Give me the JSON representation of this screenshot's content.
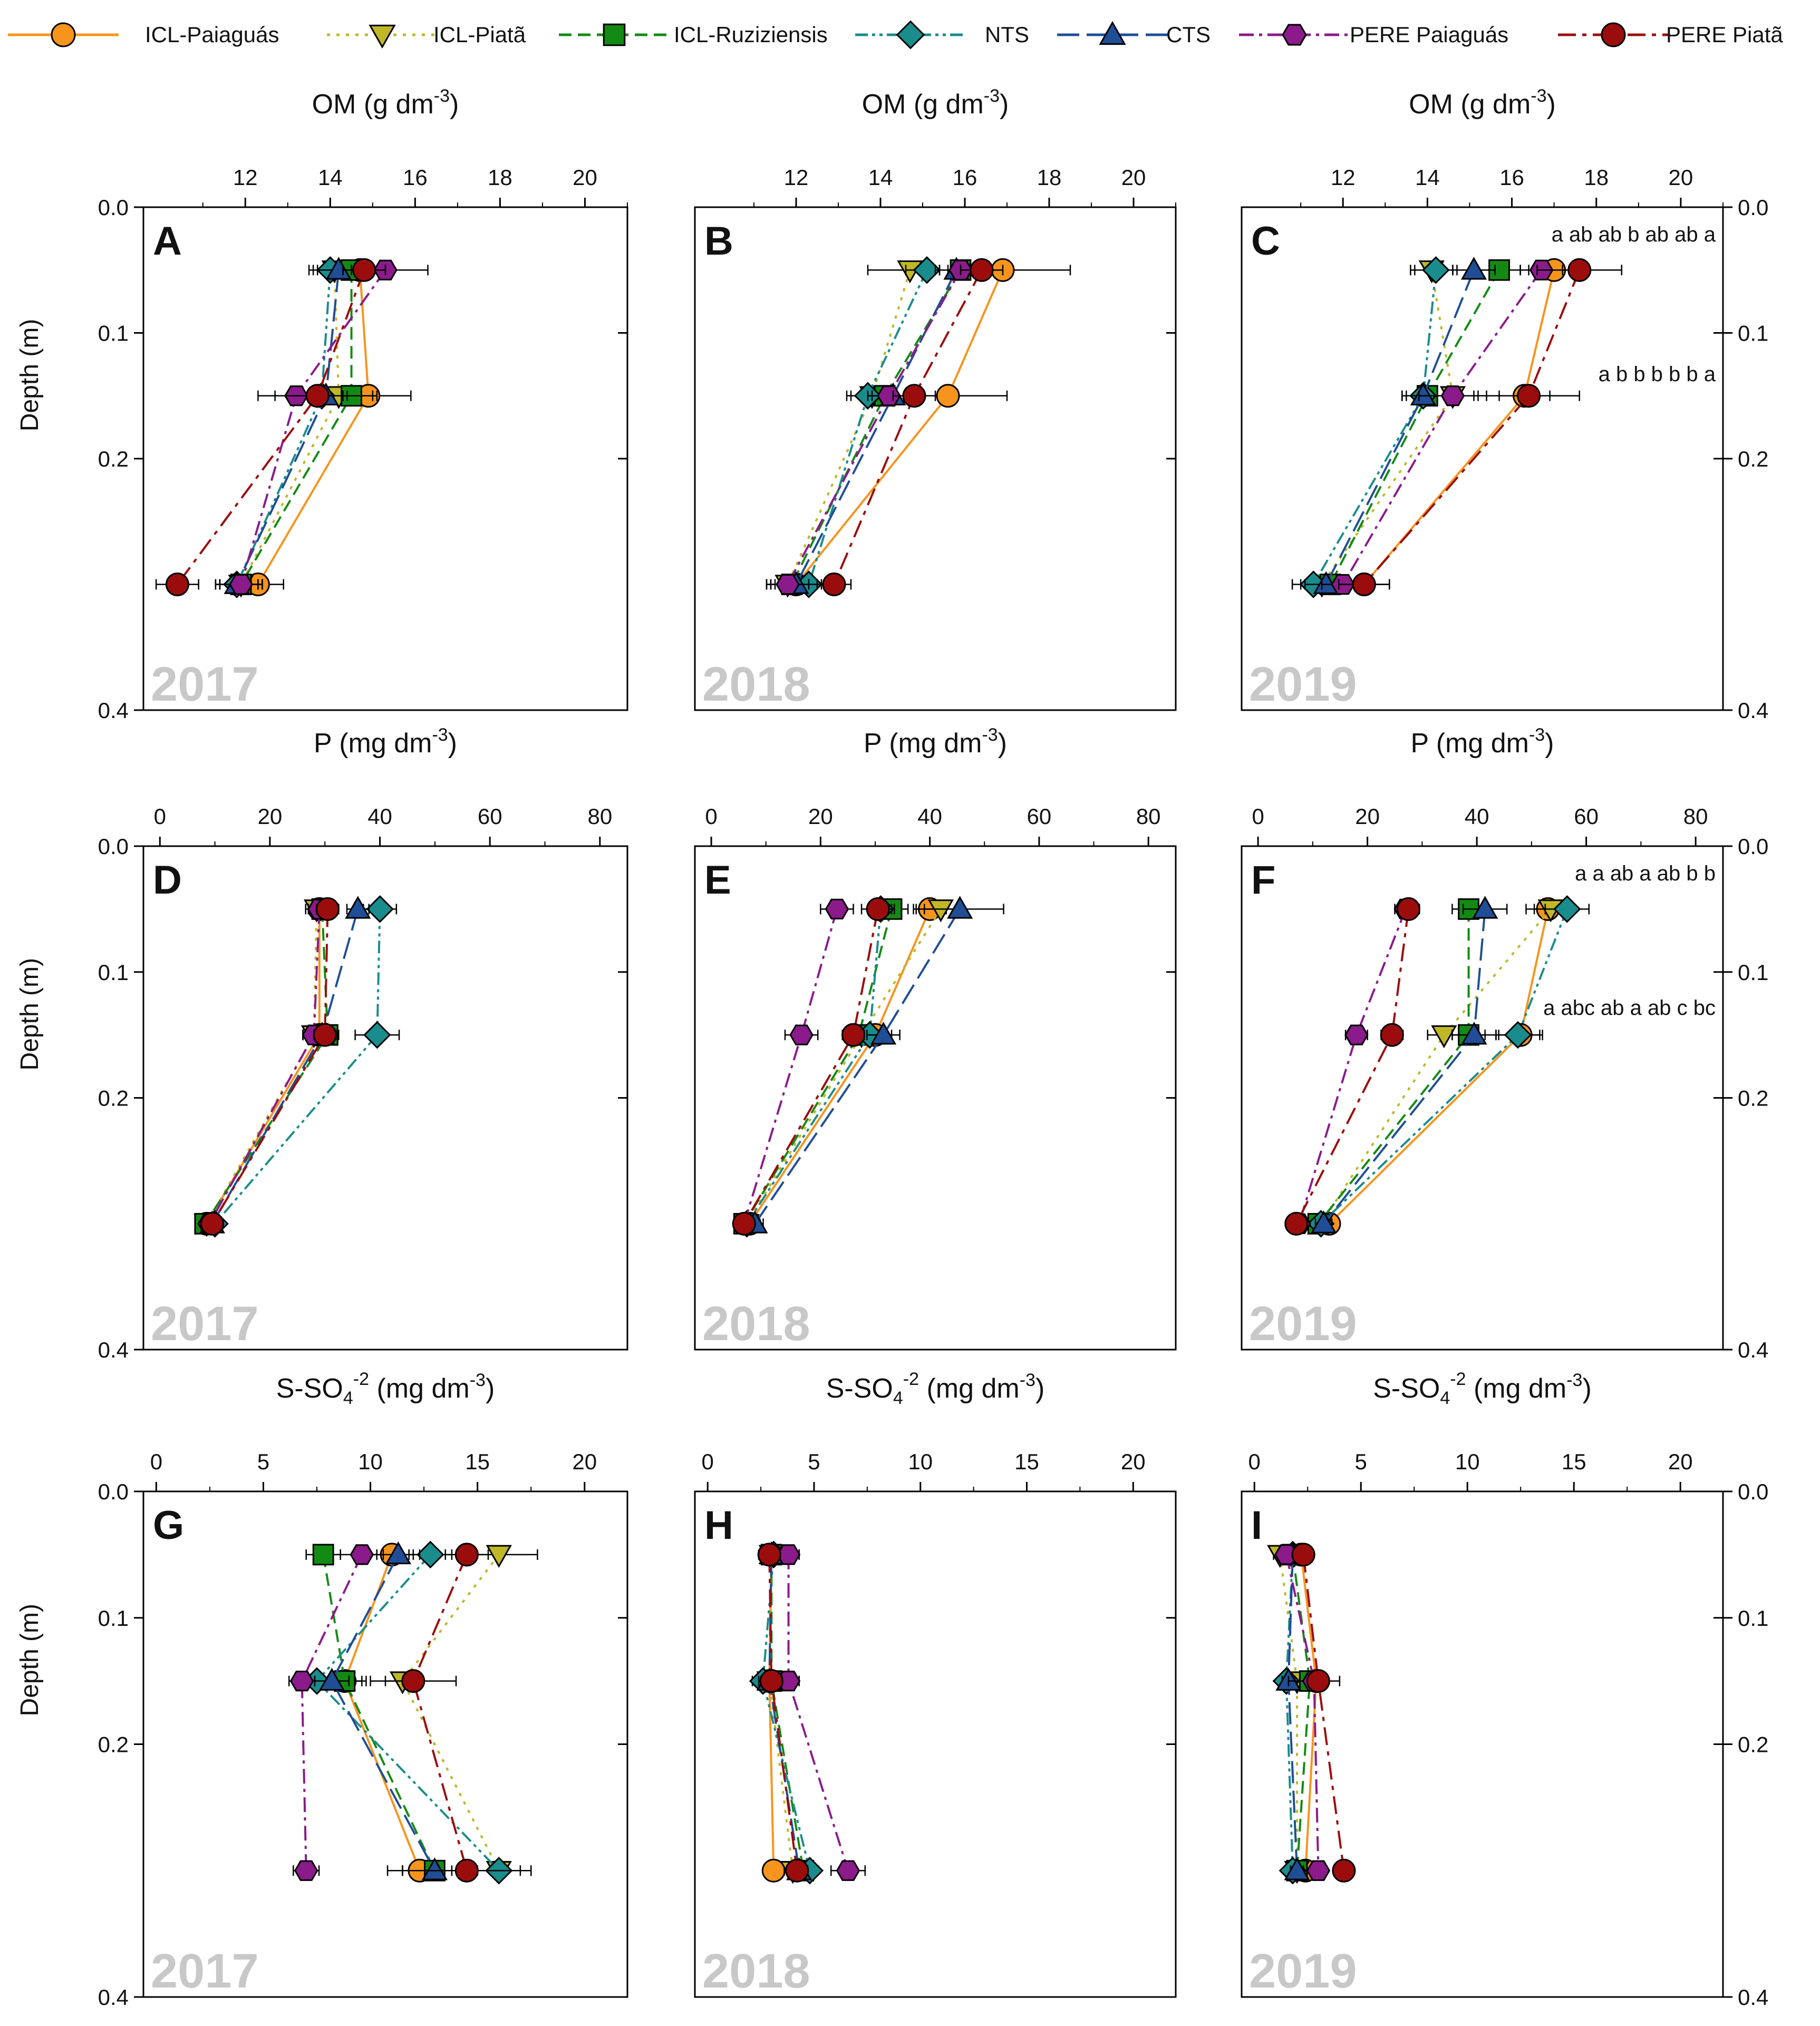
{
  "legend": [
    {
      "name": "ICL-Paiaguás",
      "color": "#F7941D",
      "marker": "circle",
      "dash": "solid"
    },
    {
      "name": "ICL-Piatã",
      "color": "#BFB726",
      "marker": "triangle-down",
      "dash": "dot"
    },
    {
      "name": "ICL-Ruziziensis",
      "color": "#138A13",
      "marker": "square",
      "dash": "dash"
    },
    {
      "name": "NTS",
      "color": "#1A8C8C",
      "marker": "diamond",
      "dash": "dashdotdot"
    },
    {
      "name": "CTS",
      "color": "#1F4E96",
      "marker": "triangle-up",
      "dash": "longdash"
    },
    {
      "name": "PERE Paiaguás",
      "color": "#8B1A8B",
      "marker": "hexagon",
      "dash": "dashdot"
    },
    {
      "name": "PERE Piatã",
      "color": "#9B0D0D",
      "marker": "circle",
      "dash": "longdashdot"
    }
  ],
  "y_axis_label": "Depth (m)",
  "depth_ticks": [
    "0.0",
    "0.1",
    "0.2",
    "0.4"
  ],
  "rows": [
    {
      "xlabel_main": "OM (g dm",
      "xlabel_sup": "-3",
      "xlabel_end": ")"
    },
    {
      "xlabel_main": "P (mg dm",
      "xlabel_sup": "-3",
      "xlabel_end": ")"
    },
    {
      "xlabel_main": "S-SO",
      "xlabel_sub": "4",
      "xlabel_sup": "-2",
      "xlabel_mid": " (mg dm",
      "xlabel_sup2": "-3",
      "xlabel_end": ")"
    }
  ],
  "chart_data": [
    {
      "panel": "A",
      "year": "2017",
      "type": "line",
      "xlim": [
        9.6,
        21
      ],
      "xticks": [
        12,
        14,
        16,
        18,
        20
      ],
      "ylim": [
        0,
        0.4
      ],
      "depths": [
        0.05,
        0.15,
        0.3
      ],
      "series": [
        {
          "name": "ICL-Paiaguás",
          "values": [
            14.7,
            14.9,
            12.3
          ],
          "err": [
            0.6,
            1.0,
            0.6
          ]
        },
        {
          "name": "ICL-Piatã",
          "values": [
            14.1,
            14.2,
            11.9
          ],
          "err": [
            0.5,
            0.5,
            0.5
          ]
        },
        {
          "name": "ICL-Ruziziensis",
          "values": [
            14.5,
            14.5,
            11.9
          ],
          "err": [
            0.5,
            0.5,
            0.5
          ]
        },
        {
          "name": "NTS",
          "values": [
            14.0,
            13.8,
            11.8
          ],
          "err": [
            0.5,
            0.5,
            0.5
          ]
        },
        {
          "name": "CTS",
          "values": [
            14.2,
            13.9,
            11.8
          ],
          "err": [
            0.5,
            0.5,
            0.5
          ]
        },
        {
          "name": "PERE Paiaguás",
          "values": [
            15.3,
            13.2,
            11.9
          ],
          "err": [
            1.0,
            0.5,
            0.5
          ]
        },
        {
          "name": "PERE Piatã",
          "values": [
            14.8,
            13.7,
            10.4
          ],
          "err": [
            0.5,
            1.4,
            0.5
          ]
        }
      ],
      "annotations": []
    },
    {
      "panel": "B",
      "year": "2018",
      "type": "line",
      "xlim": [
        9.6,
        21
      ],
      "xticks": [
        12,
        14,
        16,
        18,
        20
      ],
      "ylim": [
        0,
        0.4
      ],
      "depths": [
        0.05,
        0.15,
        0.3
      ],
      "series": [
        {
          "name": "ICL-Paiaguás",
          "values": [
            16.9,
            15.6,
            12.0
          ],
          "err": [
            1.6,
            1.4,
            0.6
          ]
        },
        {
          "name": "ICL-Piatã",
          "values": [
            14.7,
            13.8,
            11.8
          ],
          "err": [
            1.0,
            0.5,
            0.5
          ]
        },
        {
          "name": "ICL-Ruziziensis",
          "values": [
            15.9,
            14.1,
            11.9
          ],
          "err": [
            0.5,
            0.5,
            0.5
          ]
        },
        {
          "name": "NTS",
          "values": [
            15.1,
            13.7,
            12.3
          ],
          "err": [
            0.5,
            0.5,
            0.5
          ]
        },
        {
          "name": "CTS",
          "values": [
            15.8,
            14.3,
            12.0
          ],
          "err": [
            0.5,
            0.5,
            0.5
          ]
        },
        {
          "name": "PERE Paiaguás",
          "values": [
            15.9,
            14.2,
            11.8
          ],
          "err": [
            0.5,
            0.5,
            0.5
          ]
        },
        {
          "name": "PERE Piatã",
          "values": [
            16.4,
            14.8,
            12.9
          ],
          "err": [
            0.5,
            0.5,
            0.4
          ]
        }
      ],
      "annotations": []
    },
    {
      "panel": "C",
      "year": "2019",
      "type": "line",
      "xlim": [
        9.6,
        21
      ],
      "xticks": [
        12,
        14,
        16,
        18,
        20
      ],
      "ylim": [
        0,
        0.4
      ],
      "depths": [
        0.05,
        0.15,
        0.3
      ],
      "series": [
        {
          "name": "ICL-Paiaguás",
          "values": [
            17.0,
            16.3,
            12.5
          ],
          "err": [
            0.6,
            0.6,
            0.6
          ]
        },
        {
          "name": "ICL-Piatã",
          "values": [
            14.1,
            14.6,
            11.5
          ],
          "err": [
            0.5,
            0.5,
            0.5
          ]
        },
        {
          "name": "ICL-Ruziziensis",
          "values": [
            15.7,
            14.0,
            11.7
          ],
          "err": [
            0.5,
            0.5,
            0.5
          ]
        },
        {
          "name": "NTS",
          "values": [
            14.2,
            13.9,
            11.3
          ],
          "err": [
            0.5,
            0.5,
            0.5
          ]
        },
        {
          "name": "CTS",
          "values": [
            15.1,
            13.9,
            11.6
          ],
          "err": [
            0.5,
            0.5,
            0.5
          ]
        },
        {
          "name": "PERE Paiaguás",
          "values": [
            16.7,
            14.6,
            12.0
          ],
          "err": [
            0.5,
            0.8,
            0.5
          ]
        },
        {
          "name": "PERE Piatã",
          "values": [
            17.6,
            16.4,
            12.5
          ],
          "err": [
            1.0,
            1.2,
            0.6
          ]
        }
      ],
      "annotations": [
        "a ab ab b ab ab a",
        "a b b b b b a"
      ]
    },
    {
      "panel": "D",
      "year": "2017",
      "type": "line",
      "xlim": [
        -3,
        85
      ],
      "xticks": [
        0,
        20,
        40,
        60,
        80
      ],
      "ylim": [
        0,
        0.4
      ],
      "depths": [
        0.05,
        0.15,
        0.3
      ],
      "series": [
        {
          "name": "ICL-Paiaguás",
          "values": [
            29.0,
            29.0,
            8.5
          ],
          "err": [
            2.0,
            3.0,
            1.5
          ]
        },
        {
          "name": "ICL-Piatã",
          "values": [
            28.5,
            28.0,
            8.5
          ],
          "err": [
            2.0,
            2.0,
            1.5
          ]
        },
        {
          "name": "ICL-Ruziziensis",
          "values": [
            29.5,
            30.5,
            8.2
          ],
          "err": [
            2.0,
            2.0,
            1.5
          ]
        },
        {
          "name": "NTS",
          "values": [
            40.0,
            39.5,
            10.0
          ],
          "err": [
            3.0,
            4.0,
            1.5
          ]
        },
        {
          "name": "CTS",
          "values": [
            36.0,
            29.5,
            9.5
          ],
          "err": [
            2.0,
            2.0,
            1.5
          ]
        },
        {
          "name": "PERE Paiaguás",
          "values": [
            29.0,
            28.0,
            9.0
          ],
          "err": [
            2.0,
            2.0,
            1.5
          ]
        },
        {
          "name": "PERE Piatã",
          "values": [
            30.5,
            30.0,
            9.5
          ],
          "err": [
            2.0,
            2.0,
            1.5
          ]
        }
      ],
      "annotations": []
    },
    {
      "panel": "E",
      "year": "2018",
      "type": "line",
      "xlim": [
        -3,
        85
      ],
      "xticks": [
        0,
        20,
        40,
        60,
        80
      ],
      "ylim": [
        0,
        0.4
      ],
      "depths": [
        0.05,
        0.15,
        0.3
      ],
      "series": [
        {
          "name": "ICL-Paiaguás",
          "values": [
            40.0,
            30.0,
            7.0
          ],
          "err": [
            3.0,
            3.0,
            1.5
          ]
        },
        {
          "name": "ICL-Piatã",
          "values": [
            42.0,
            27.5,
            6.5
          ],
          "err": [
            3.0,
            2.0,
            1.5
          ]
        },
        {
          "name": "ICL-Ruziziensis",
          "values": [
            33.0,
            27.0,
            6.0
          ],
          "err": [
            3.0,
            2.0,
            1.5
          ]
        },
        {
          "name": "NTS",
          "values": [
            31.0,
            29.0,
            6.5
          ],
          "err": [
            2.0,
            2.0,
            1.5
          ]
        },
        {
          "name": "CTS",
          "values": [
            45.5,
            31.5,
            8.0
          ],
          "err": [
            8.0,
            3.0,
            1.5
          ]
        },
        {
          "name": "PERE Paiaguás",
          "values": [
            23.0,
            16.5,
            6.0
          ],
          "err": [
            3.0,
            3.0,
            1.5
          ]
        },
        {
          "name": "PERE Piatã",
          "values": [
            30.5,
            26.0,
            6.0
          ],
          "err": [
            3.0,
            2.0,
            1.5
          ]
        }
      ],
      "annotations": []
    },
    {
      "panel": "F",
      "year": "2019",
      "type": "line",
      "xlim": [
        -3,
        85
      ],
      "xticks": [
        0,
        20,
        40,
        60,
        80
      ],
      "ylim": [
        0,
        0.4
      ],
      "depths": [
        0.05,
        0.15,
        0.3
      ],
      "series": [
        {
          "name": "ICL-Paiaguás",
          "values": [
            53.0,
            48.0,
            13.0
          ],
          "err": [
            4.0,
            4.0,
            1.5
          ]
        },
        {
          "name": "ICL-Piatã",
          "values": [
            53.5,
            34.0,
            11.5
          ],
          "err": [
            3.0,
            3.0,
            1.5
          ]
        },
        {
          "name": "ICL-Ruziziensis",
          "values": [
            38.5,
            38.5,
            11.0
          ],
          "err": [
            3.0,
            3.0,
            1.5
          ]
        },
        {
          "name": "NTS",
          "values": [
            56.5,
            47.5,
            11.5
          ],
          "err": [
            4.0,
            4.0,
            1.5
          ]
        },
        {
          "name": "CTS",
          "values": [
            41.5,
            39.5,
            12.0
          ],
          "err": [
            4.0,
            4.0,
            1.5
          ]
        },
        {
          "name": "PERE Paiaguás",
          "values": [
            27.0,
            18.0,
            7.5
          ],
          "err": [
            2.0,
            2.0,
            1.5
          ]
        },
        {
          "name": "PERE Piatã",
          "values": [
            27.5,
            24.5,
            7.0
          ],
          "err": [
            2.0,
            2.0,
            1.5
          ]
        }
      ],
      "annotations": [
        "a a ab a ab b b",
        "a abc ab a ab c bc"
      ]
    },
    {
      "panel": "G",
      "year": "2017",
      "type": "line",
      "xlim": [
        -0.6,
        22
      ],
      "xticks": [
        0,
        5,
        10,
        15,
        20
      ],
      "ylim": [
        0,
        0.4
      ],
      "depths": [
        0.05,
        0.15,
        0.3
      ],
      "series": [
        {
          "name": "ICL-Paiaguás",
          "values": [
            11.0,
            8.8,
            12.3
          ],
          "err": [
            1.0,
            1.0,
            1.5
          ]
        },
        {
          "name": "ICL-Piatã",
          "values": [
            16.0,
            11.5,
            16.0
          ],
          "err": [
            1.8,
            0.8,
            1.5
          ]
        },
        {
          "name": "ICL-Ruziziensis",
          "values": [
            7.8,
            8.8,
            13.0
          ],
          "err": [
            0.8,
            0.8,
            1.5
          ]
        },
        {
          "name": "NTS",
          "values": [
            12.8,
            7.5,
            16.0
          ],
          "err": [
            1.0,
            0.6,
            1.0
          ]
        },
        {
          "name": "CTS",
          "values": [
            11.3,
            8.2,
            13.0
          ],
          "err": [
            1.0,
            0.8,
            1.5
          ]
        },
        {
          "name": "PERE Paiaguás",
          "values": [
            9.6,
            6.8,
            7.0
          ],
          "err": [
            1.0,
            0.6,
            0.6
          ]
        },
        {
          "name": "PERE Piatã",
          "values": [
            14.5,
            12.0,
            14.5
          ],
          "err": [
            1.0,
            2.0,
            3.0
          ]
        }
      ],
      "annotations": []
    },
    {
      "panel": "H",
      "year": "2018",
      "type": "line",
      "xlim": [
        -0.6,
        22
      ],
      "xticks": [
        0,
        5,
        10,
        15,
        20
      ],
      "ylim": [
        0,
        0.4
      ],
      "depths": [
        0.05,
        0.15,
        0.3
      ],
      "series": [
        {
          "name": "ICL-Paiaguás",
          "values": [
            3.0,
            2.9,
            3.1
          ],
          "err": [
            0.5,
            0.5,
            0.4
          ]
        },
        {
          "name": "ICL-Piatã",
          "values": [
            3.0,
            2.9,
            4.0
          ],
          "err": [
            0.5,
            0.5,
            0.4
          ]
        },
        {
          "name": "ICL-Ruziziensis",
          "values": [
            3.0,
            3.0,
            4.5
          ],
          "err": [
            0.5,
            0.5,
            0.4
          ]
        },
        {
          "name": "NTS",
          "values": [
            3.1,
            2.6,
            4.8
          ],
          "err": [
            0.5,
            0.5,
            0.4
          ]
        },
        {
          "name": "CTS",
          "values": [
            3.0,
            2.9,
            4.3
          ],
          "err": [
            0.5,
            0.5,
            0.4
          ]
        },
        {
          "name": "PERE Paiaguás",
          "values": [
            3.8,
            3.8,
            6.6
          ],
          "err": [
            0.5,
            0.5,
            0.8
          ]
        },
        {
          "name": "PERE Piatã",
          "values": [
            2.9,
            3.0,
            4.2
          ],
          "err": [
            0.5,
            0.5,
            0.4
          ]
        }
      ],
      "annotations": []
    },
    {
      "panel": "I",
      "year": "2019",
      "type": "line",
      "xlim": [
        -0.6,
        22
      ],
      "xticks": [
        0,
        5,
        10,
        15,
        20
      ],
      "ylim": [
        0,
        0.4
      ],
      "depths": [
        0.05,
        0.15,
        0.3
      ],
      "series": [
        {
          "name": "ICL-Paiaguás",
          "values": [
            2.2,
            2.9,
            2.4
          ],
          "err": [
            0.4,
            0.4,
            0.4
          ]
        },
        {
          "name": "ICL-Piatã",
          "values": [
            1.2,
            2.0,
            2.0
          ],
          "err": [
            0.3,
            0.3,
            0.3
          ]
        },
        {
          "name": "ICL-Ruziziensis",
          "values": [
            1.8,
            2.6,
            2.0
          ],
          "err": [
            0.3,
            0.4,
            0.3
          ]
        },
        {
          "name": "NTS",
          "values": [
            1.8,
            1.5,
            1.8
          ],
          "err": [
            0.3,
            0.3,
            0.3
          ]
        },
        {
          "name": "CTS",
          "values": [
            1.8,
            1.6,
            2.0
          ],
          "err": [
            0.3,
            0.3,
            0.3
          ]
        },
        {
          "name": "PERE Paiaguás",
          "values": [
            1.5,
            2.8,
            3.0
          ],
          "err": [
            0.3,
            1.2,
            0.3
          ]
        },
        {
          "name": "PERE Piatã",
          "values": [
            2.3,
            3.0,
            4.2
          ],
          "err": [
            0.3,
            0.4,
            0.4
          ]
        }
      ],
      "annotations": []
    }
  ]
}
